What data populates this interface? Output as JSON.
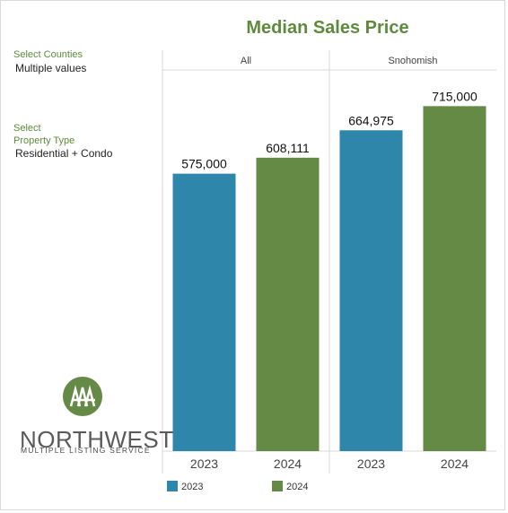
{
  "title": "Median Sales Price",
  "filters": {
    "counties": {
      "label": "Select Counties",
      "value": "Multiple values"
    },
    "property_type": {
      "label_line1": "Select",
      "label_line2": "Property Type",
      "value": "Residential + Condo"
    }
  },
  "logo": {
    "wordmark": "NORTHWEST",
    "subtext": "MULTIPLE LISTING SERVICE"
  },
  "colors": {
    "2023": "#2e86ab",
    "2024": "#658a46",
    "title": "#5d8a3c"
  },
  "legend": [
    {
      "label": "2023",
      "color": "#2e86ab"
    },
    {
      "label": "2024",
      "color": "#658a46"
    }
  ],
  "chart_data": {
    "type": "bar",
    "title": "Median Sales Price",
    "groups": [
      "All",
      "Snohomish"
    ],
    "categories": [
      "2023",
      "2024"
    ],
    "series": [
      {
        "group": "All",
        "values": [
          575000,
          608111
        ],
        "labels": [
          "575,000",
          "608,111"
        ]
      },
      {
        "group": "Snohomish",
        "values": [
          664975,
          715000
        ],
        "labels": [
          "664,975",
          "715,000"
        ]
      }
    ],
    "ylim": [
      0,
      790000
    ],
    "grid": false,
    "legend_position": "bottom"
  }
}
